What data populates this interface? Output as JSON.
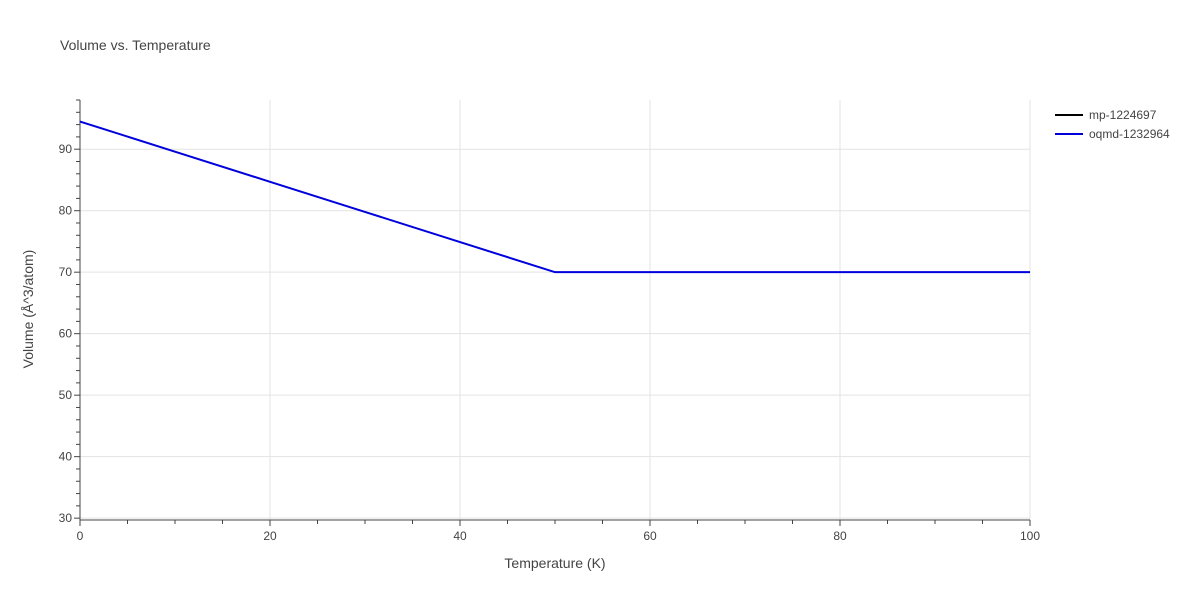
{
  "chart_data": {
    "type": "line",
    "title": "Volume vs. Temperature",
    "xlabel": "Temperature (K)",
    "ylabel": "Volume (Å^3/atom)",
    "xlim": [
      0,
      100
    ],
    "ylim": [
      29.7,
      98
    ],
    "xticks": [
      0,
      20,
      40,
      60,
      80,
      100
    ],
    "yticks": [
      30,
      40,
      50,
      60,
      70,
      80,
      90
    ],
    "grid": true,
    "legend_position": "top-right",
    "series": [
      {
        "name": "mp-1224697",
        "color": "#000000",
        "x": [],
        "y": []
      },
      {
        "name": "oqmd-1232964",
        "color": "#0000dd",
        "x": [
          0,
          10,
          20,
          30,
          40,
          50,
          60,
          70,
          80,
          90,
          100
        ],
        "y": [
          94.5,
          89.6,
          84.7,
          79.8,
          74.9,
          70.0,
          70.0,
          70.0,
          70.0,
          70.0,
          70.0
        ]
      }
    ]
  }
}
